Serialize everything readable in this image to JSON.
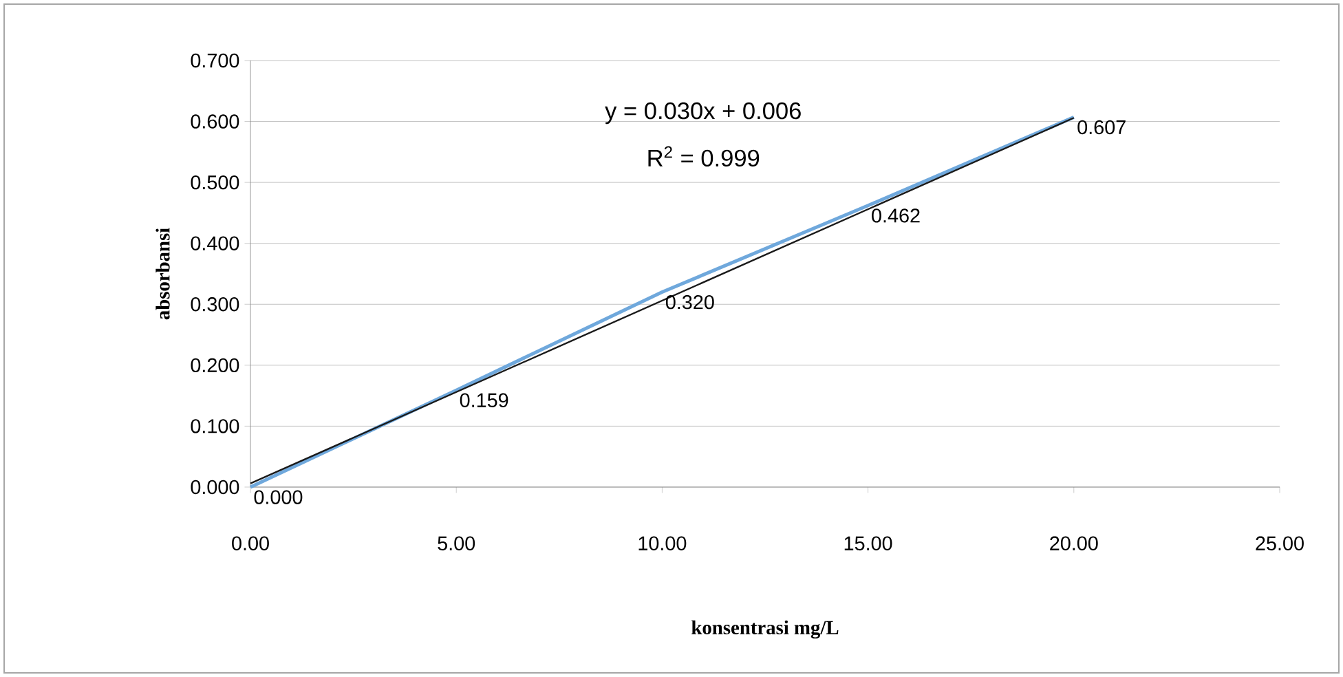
{
  "chart_data": {
    "type": "line",
    "xlabel": "konsentrasi mg/L",
    "ylabel": "absorbansi",
    "annotations": [
      "y = 0.030x + 0.006",
      "R$^{2}$ = 0.999"
    ],
    "series": [
      {
        "color": "#6fa8dc",
        "x": [
          0,
          5,
          10,
          15,
          20
        ],
        "values": [
          0.0,
          0.159,
          0.32,
          0.462,
          0.607
        ],
        "value_labels": [
          "0.000",
          "0.159",
          "0.320",
          "0.462",
          "0.607"
        ]
      },
      {
        "color": "#1a1a1a",
        "x": [
          0,
          20
        ],
        "values": [
          0.006,
          0.606
        ]
      }
    ],
    "xlim": [
      0,
      25
    ],
    "ylim": [
      0,
      0.7
    ],
    "xticks": [
      {
        "value": 0,
        "label": "0.00"
      },
      {
        "value": 5,
        "label": "5.00"
      },
      {
        "value": 10,
        "label": "10.00"
      },
      {
        "value": 15,
        "label": "15.00"
      },
      {
        "value": 20,
        "label": "20.00"
      },
      {
        "value": 25,
        "label": "25.00"
      }
    ],
    "yticks": [
      {
        "value": 0,
        "label": "0.000"
      },
      {
        "value": 0.1,
        "label": "0.100"
      },
      {
        "value": 0.2,
        "label": "0.200"
      },
      {
        "value": 0.3,
        "label": "0.300"
      },
      {
        "value": 0.4,
        "label": "0.400"
      },
      {
        "value": 0.5,
        "label": "0.500"
      },
      {
        "value": 0.6,
        "label": "0.600"
      },
      {
        "value": 0.7,
        "label": "0.700"
      }
    ],
    "grid": "y"
  }
}
